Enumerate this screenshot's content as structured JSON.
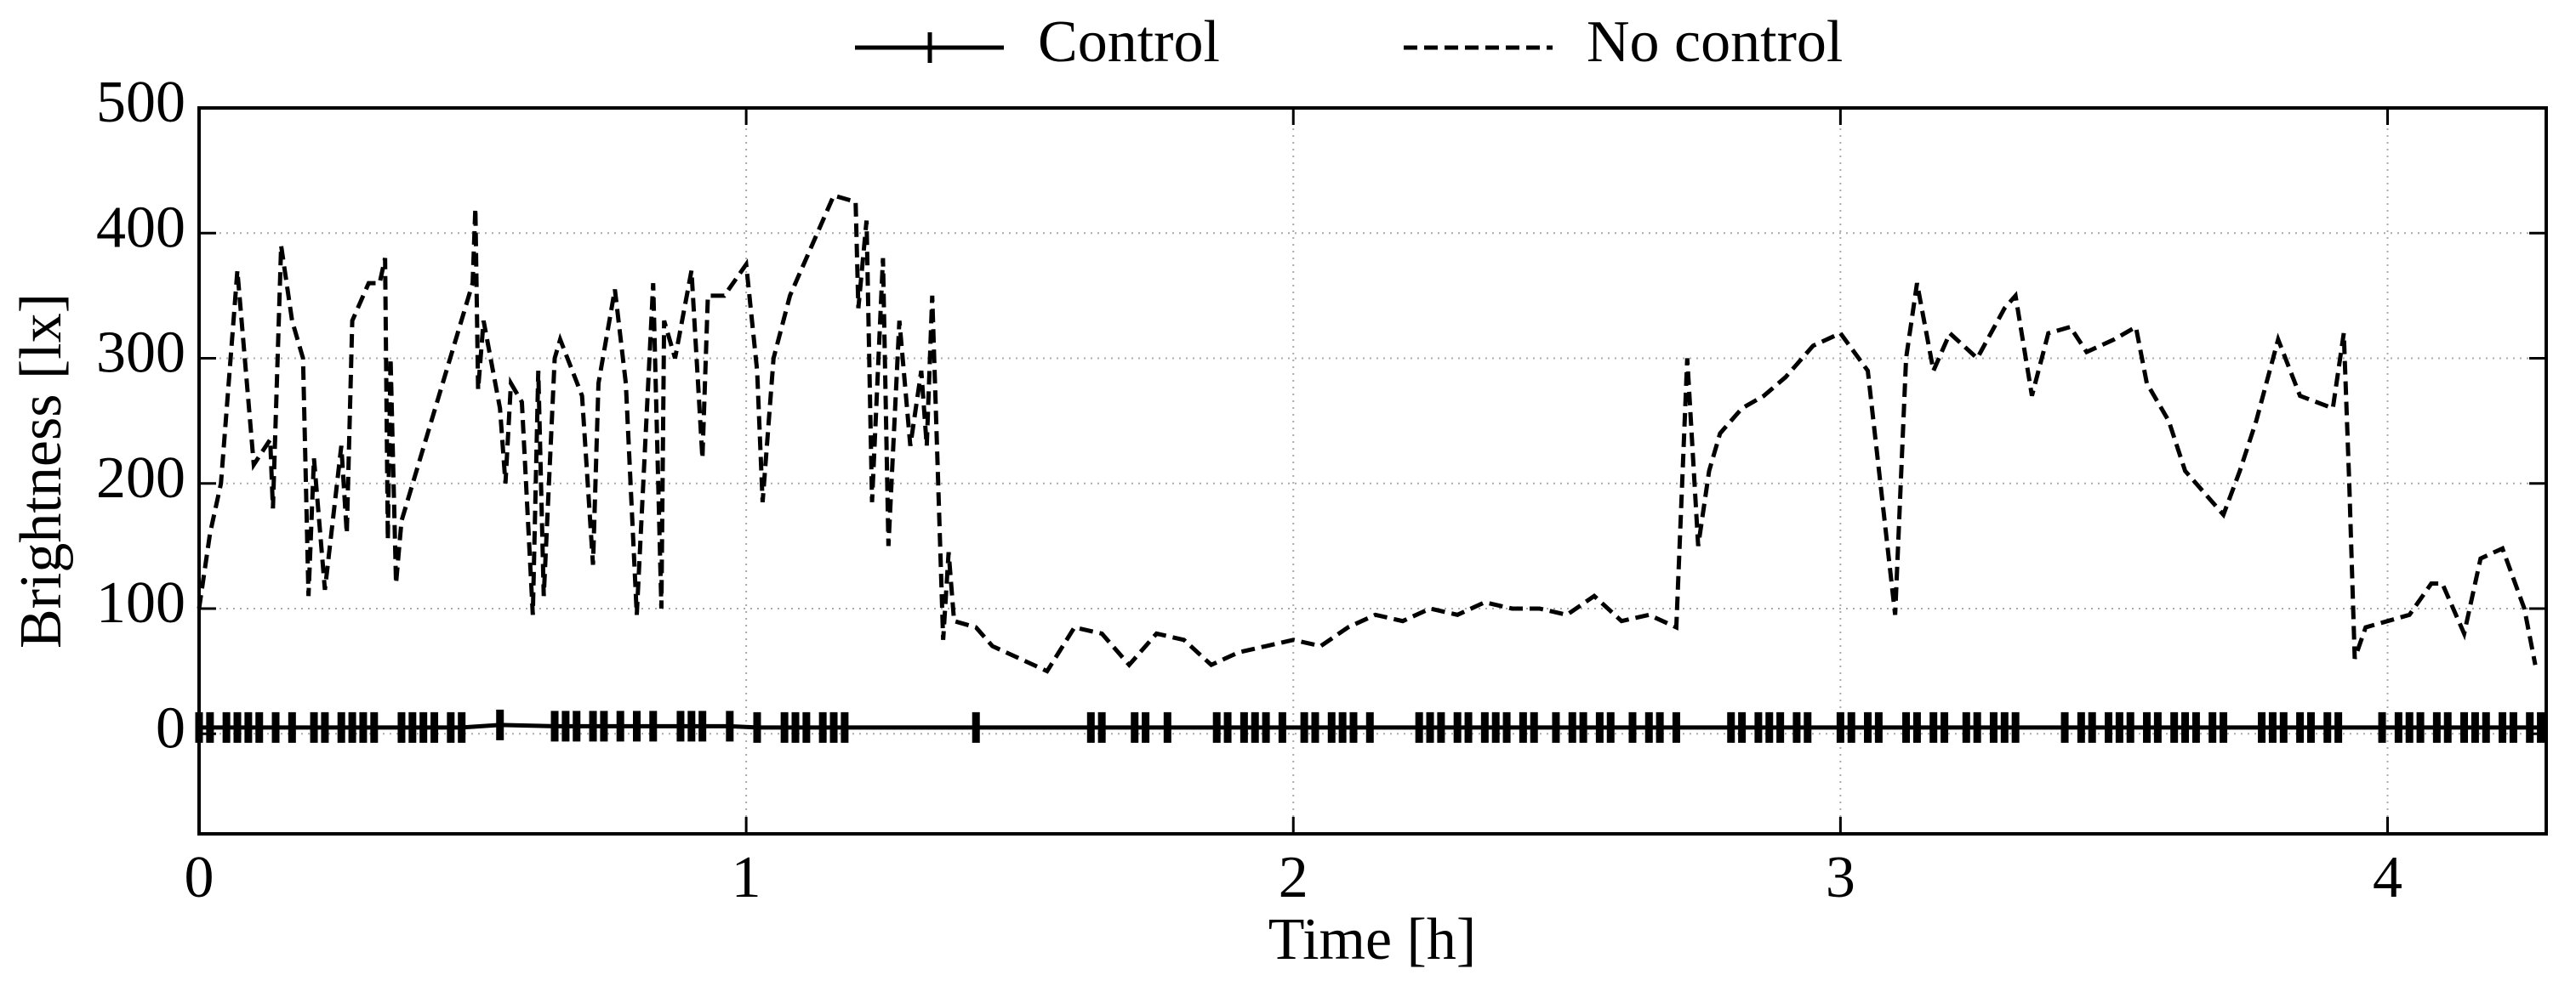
{
  "chart_data": {
    "type": "line",
    "x_label": "Time [h]",
    "y_label": "Brightness [lx]",
    "xlim": [
      0,
      4.29
    ],
    "ylim": [
      -80,
      500
    ],
    "xticks": [
      0,
      1,
      2,
      3,
      4
    ],
    "yticks": [
      0,
      100,
      200,
      300,
      400,
      500
    ],
    "grid": true,
    "legend": "top",
    "series": [
      {
        "name": "Control",
        "color": "#000000",
        "style": "solid",
        "marker": "+",
        "x": [
          0,
          0.02,
          0.05,
          0.07,
          0.09,
          0.11,
          0.14,
          0.17,
          0.21,
          0.23,
          0.26,
          0.28,
          0.3,
          0.32,
          0.37,
          0.39,
          0.41,
          0.43,
          0.46,
          0.48,
          0.55,
          0.65,
          0.67,
          0.69,
          0.72,
          0.74,
          0.77,
          0.8,
          0.83,
          0.88,
          0.9,
          0.92,
          0.97,
          1.02,
          1.07,
          1.09,
          1.11,
          1.14,
          1.16,
          1.18,
          1.42,
          1.63,
          1.65,
          1.71,
          1.73,
          1.77,
          1.86,
          1.88,
          1.91,
          1.93,
          1.95,
          1.98,
          2.02,
          2.04,
          2.07,
          2.09,
          2.11,
          2.14,
          2.23,
          2.25,
          2.27,
          2.3,
          2.32,
          2.35,
          2.37,
          2.39,
          2.42,
          2.44,
          2.48,
          2.51,
          2.53,
          2.56,
          2.58,
          2.62,
          2.65,
          2.67,
          2.7,
          2.8,
          2.82,
          2.85,
          2.87,
          2.89,
          2.92,
          2.94,
          3.0,
          3.02,
          3.05,
          3.07,
          3.12,
          3.14,
          3.17,
          3.19,
          3.23,
          3.25,
          3.28,
          3.3,
          3.32,
          3.41,
          3.44,
          3.46,
          3.49,
          3.51,
          3.53,
          3.56,
          3.58,
          3.61,
          3.63,
          3.65,
          3.68,
          3.7,
          3.77,
          3.79,
          3.81,
          3.84,
          3.86,
          3.89,
          3.91,
          3.99,
          4.02,
          4.04,
          4.06,
          4.09,
          4.11,
          4.14,
          4.16,
          4.18,
          4.21,
          4.23,
          4.26,
          4.28
        ],
        "values": [
          5,
          5,
          5,
          5,
          5,
          5,
          5,
          5,
          5,
          5,
          5,
          5,
          5,
          5,
          5,
          5,
          5,
          5,
          5,
          5,
          7,
          6,
          6,
          6,
          6,
          6,
          6,
          6,
          6,
          6,
          6,
          6,
          6,
          5,
          5,
          5,
          5,
          5,
          5,
          5,
          5,
          5,
          5,
          5,
          5,
          5,
          5,
          5,
          5,
          5,
          5,
          5,
          5,
          5,
          5,
          5,
          5,
          5,
          5,
          5,
          5,
          5,
          5,
          5,
          5,
          5,
          5,
          5,
          5,
          5,
          5,
          5,
          5,
          5,
          5,
          5,
          5,
          5,
          5,
          5,
          5,
          5,
          5,
          5,
          5,
          5,
          5,
          5,
          5,
          5,
          5,
          5,
          5,
          5,
          5,
          5,
          5,
          5,
          5,
          5,
          5,
          5,
          5,
          5,
          5,
          5,
          5,
          5,
          5,
          5,
          5,
          5,
          5,
          5,
          5,
          5,
          5,
          5,
          5,
          5,
          5,
          5,
          5,
          5,
          5,
          5,
          5,
          5,
          5,
          5
        ]
      },
      {
        "name": "No control",
        "color": "#000000",
        "style": "dashed",
        "x": [
          0,
          0.02,
          0.04,
          0.07,
          0.1,
          0.13,
          0.135,
          0.15,
          0.17,
          0.19,
          0.2,
          0.21,
          0.23,
          0.26,
          0.27,
          0.28,
          0.31,
          0.33,
          0.34,
          0.345,
          0.35,
          0.36,
          0.37,
          0.5,
          0.505,
          0.51,
          0.52,
          0.55,
          0.56,
          0.57,
          0.59,
          0.61,
          0.62,
          0.63,
          0.65,
          0.66,
          0.7,
          0.72,
          0.73,
          0.76,
          0.78,
          0.8,
          0.83,
          0.845,
          0.85,
          0.87,
          0.9,
          0.92,
          0.93,
          0.96,
          1.0,
          1.02,
          1.03,
          1.05,
          1.08,
          1.13,
          1.16,
          1.2,
          1.205,
          1.22,
          1.23,
          1.25,
          1.26,
          1.28,
          1.3,
          1.32,
          1.33,
          1.34,
          1.36,
          1.37,
          1.38,
          1.42,
          1.45,
          1.5,
          1.55,
          1.6,
          1.65,
          1.7,
          1.75,
          1.8,
          1.85,
          1.9,
          1.95,
          2.0,
          2.05,
          2.1,
          2.15,
          2.2,
          2.25,
          2.3,
          2.35,
          2.4,
          2.45,
          2.5,
          2.55,
          2.6,
          2.65,
          2.7,
          2.72,
          2.74,
          2.76,
          2.78,
          2.82,
          2.86,
          2.9,
          2.95,
          3.0,
          3.05,
          3.1,
          3.12,
          3.14,
          3.17,
          3.2,
          3.25,
          3.3,
          3.32,
          3.35,
          3.38,
          3.42,
          3.45,
          3.5,
          3.54,
          3.56,
          3.6,
          3.63,
          3.7,
          3.73,
          3.76,
          3.8,
          3.84,
          3.9,
          3.92,
          3.93,
          3.94,
          3.96,
          4.0,
          4.04,
          4.08,
          4.1,
          4.14,
          4.17,
          4.21,
          4.25,
          4.27
        ],
        "values": [
          100,
          160,
          200,
          370,
          215,
          235,
          180,
          390,
          330,
          300,
          110,
          220,
          115,
          230,
          160,
          330,
          360,
          360,
          380,
          155,
          300,
          120,
          170,
          360,
          420,
          275,
          330,
          260,
          200,
          280,
          265,
          95,
          290,
          110,
          300,
          315,
          270,
          135,
          280,
          355,
          280,
          95,
          360,
          100,
          330,
          300,
          370,
          220,
          350,
          350,
          375,
          290,
          185,
          300,
          350,
          400,
          430,
          425,
          340,
          410,
          185,
          380,
          150,
          330,
          230,
          290,
          230,
          350,
          75,
          145,
          90,
          85,
          70,
          60,
          50,
          85,
          80,
          55,
          80,
          75,
          55,
          65,
          70,
          75,
          70,
          85,
          95,
          90,
          100,
          95,
          105,
          100,
          100,
          95,
          110,
          90,
          95,
          85,
          300,
          150,
          210,
          240,
          260,
          270,
          285,
          310,
          320,
          290,
          95,
          300,
          360,
          290,
          320,
          300,
          340,
          350,
          270,
          320,
          325,
          305,
          315,
          325,
          280,
          250,
          210,
          175,
          210,
          250,
          315,
          270,
          260,
          320,
          200,
          60,
          85,
          90,
          95,
          120,
          120,
          80,
          140,
          148,
          100,
          55
        ]
      }
    ]
  }
}
